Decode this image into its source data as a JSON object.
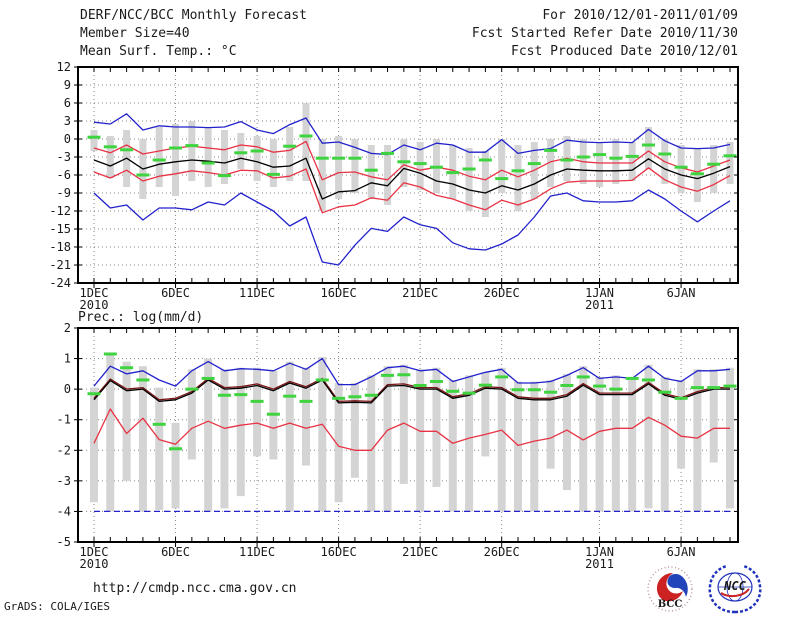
{
  "header": {
    "title": "DERF/NCC/BCC Monthly Forecast",
    "member_size": "Member Size=40",
    "for_range": "For 2010/12/01-2011/01/09",
    "refer_date": "Fcst Started Refer Date 2010/11/30",
    "produced_date": "Fcst Produced Date 2010/12/01"
  },
  "footer": {
    "url": "http://cmdp.ncc.cma.gov.cn",
    "grads_credit": "GrADS: COLA/IGES",
    "logos": [
      "BCC Beijing Climate Center",
      "NCC National Climate Center"
    ]
  },
  "colors": {
    "max_min_line": "#2222cc",
    "spread_line": "#e83344",
    "mean_line": "#000000",
    "median_line": "#7a1515",
    "observation": "#3fd43f",
    "spread_bar": "#d4d4d4",
    "grid": "#858585",
    "frame": "#000000",
    "text": "#1a1a1a",
    "logo_blue": "#2233bb",
    "logo_red": "#cc2222"
  },
  "chart_data": [
    {
      "type": "line",
      "title": "Mean Surf. Temp.: °C",
      "date_range": "2010/12/01 - 2011/01/09",
      "n_days": 40,
      "ylim": [
        -24,
        12
      ],
      "ytick_step": 3,
      "grid": "dotted",
      "legend": "none",
      "x_ticks": [
        {
          "day": 1,
          "label": "1DEC",
          "sublabel": "2010"
        },
        {
          "day": 6,
          "label": "6DEC"
        },
        {
          "day": 11,
          "label": "11DEC"
        },
        {
          "day": 16,
          "label": "16DEC"
        },
        {
          "day": 21,
          "label": "21DEC"
        },
        {
          "day": 26,
          "label": "26DEC"
        },
        {
          "day": 32,
          "label": "1JAN",
          "sublabel": "2011"
        },
        {
          "day": 37,
          "label": "6JAN"
        }
      ],
      "series": [
        {
          "name": "member-spread-bar",
          "kind": "range-bar",
          "color": "#d4d4d4",
          "top": [
            1.5,
            0.5,
            1.5,
            0.0,
            2.0,
            2.5,
            3.0,
            2.0,
            1.5,
            1.0,
            0.5,
            0.0,
            2.0,
            6.0,
            0.0,
            0.5,
            0.0,
            -1.0,
            -1.0,
            0.0,
            -0.5,
            0.0,
            -1.0,
            -1.5,
            -2.0,
            0.0,
            -1.0,
            -0.5,
            0.0,
            0.5,
            0.0,
            -0.5,
            0.0,
            -0.5,
            2.0,
            0.0,
            -1.0,
            -1.5,
            -1.0,
            -0.5
          ],
          "bottom": [
            -2.0,
            -6.5,
            -8.0,
            -10.0,
            -8.0,
            -9.5,
            -7.0,
            -8.0,
            -7.5,
            -5.0,
            -7.0,
            -8.0,
            -7.0,
            -7.0,
            -12.0,
            -10.0,
            -9.0,
            -10.0,
            -11.0,
            -8.0,
            -8.5,
            -9.0,
            -10.0,
            -12.0,
            -13.0,
            -9.0,
            -12.0,
            -10.0,
            -8.0,
            -7.0,
            -7.5,
            -8.0,
            -7.5,
            -7.0,
            -5.0,
            -7.5,
            -9.0,
            -10.5,
            -9.0,
            -7.5
          ]
        },
        {
          "name": "ensemble-max",
          "kind": "line",
          "color": "#2222cc",
          "values": [
            2.8,
            2.5,
            4.2,
            1.5,
            2.2,
            2.0,
            2.0,
            1.9,
            2.0,
            2.9,
            1.5,
            0.9,
            2.4,
            3.5,
            -0.7,
            -0.5,
            -1.4,
            -2.4,
            -2.6,
            -1.0,
            -1.8,
            -0.7,
            -1.0,
            -2.2,
            -2.2,
            -0.1,
            -2.4,
            -1.9,
            -1.6,
            -0.2,
            -0.5,
            -0.6,
            -0.5,
            -0.6,
            1.6,
            -0.3,
            -1.5,
            -1.6,
            -1.5,
            -0.9
          ]
        },
        {
          "name": "upper-spread",
          "kind": "line",
          "color": "#e83344",
          "values": [
            -1.5,
            -2.3,
            -1.0,
            -2.5,
            -2.0,
            -1.5,
            -1.2,
            -1.5,
            -1.8,
            -1.0,
            -1.3,
            -2.2,
            -1.9,
            -0.4,
            -6.8,
            -5.6,
            -5.5,
            -6.3,
            -6.8,
            -4.3,
            -5.2,
            -4.7,
            -5.2,
            -6.2,
            -6.8,
            -5.2,
            -6.3,
            -5.2,
            -3.8,
            -3.2,
            -3.8,
            -4.0,
            -4.0,
            -4.0,
            -2.0,
            -3.8,
            -4.8,
            -5.5,
            -4.5,
            -3.5
          ]
        },
        {
          "name": "ensemble-mean",
          "kind": "line",
          "color": "#000000",
          "values": [
            -3.5,
            -4.5,
            -3.2,
            -5.0,
            -4.2,
            -3.8,
            -3.5,
            -3.7,
            -4.0,
            -3.2,
            -3.8,
            -4.7,
            -4.5,
            -3.2,
            -10.0,
            -8.8,
            -8.6,
            -7.3,
            -7.8,
            -4.9,
            -5.7,
            -7.0,
            -7.5,
            -8.5,
            -9.0,
            -7.8,
            -8.5,
            -7.5,
            -6.0,
            -5.0,
            -5.2,
            -5.3,
            -5.3,
            -5.2,
            -3.3,
            -5.0,
            -6.0,
            -6.6,
            -5.7,
            -4.6
          ]
        },
        {
          "name": "lower-spread",
          "kind": "line",
          "color": "#e83344",
          "values": [
            -5.5,
            -6.5,
            -5.2,
            -7.0,
            -6.2,
            -5.8,
            -5.3,
            -5.6,
            -6.0,
            -5.2,
            -5.3,
            -6.5,
            -6.2,
            -5.0,
            -12.3,
            -11.3,
            -11.0,
            -9.8,
            -10.2,
            -7.3,
            -8.0,
            -9.4,
            -10.0,
            -11.0,
            -11.8,
            -10.2,
            -11.0,
            -10.0,
            -8.3,
            -7.2,
            -7.0,
            -7.0,
            -7.0,
            -6.9,
            -4.8,
            -6.8,
            -8.0,
            -8.7,
            -7.6,
            -6.1
          ]
        },
        {
          "name": "ensemble-min",
          "kind": "line",
          "color": "#2222cc",
          "values": [
            -9.0,
            -11.5,
            -11.0,
            -13.5,
            -11.5,
            -11.5,
            -11.8,
            -10.5,
            -11.0,
            -9.0,
            -10.5,
            -12.0,
            -14.5,
            -13.0,
            -20.5,
            -21.0,
            -17.7,
            -14.9,
            -15.4,
            -13.0,
            -14.3,
            -14.9,
            -17.3,
            -18.3,
            -18.5,
            -17.5,
            -16.0,
            -13.0,
            -9.5,
            -9.0,
            -10.3,
            -10.5,
            -10.5,
            -10.3,
            -8.5,
            -10.0,
            -12.0,
            -13.8,
            -12.0,
            -10.3
          ]
        },
        {
          "name": "observation",
          "kind": "dash-marker",
          "color": "#3fd43f",
          "values": [
            0.3,
            -1.3,
            -1.8,
            -6.0,
            -3.5,
            -1.5,
            -1.1,
            -4.0,
            -6.1,
            -2.3,
            -2.0,
            -5.9,
            -1.2,
            0.5,
            -3.2,
            -3.2,
            -3.2,
            -5.2,
            -2.4,
            -3.8,
            -4.1,
            -4.7,
            -5.6,
            -5.0,
            -3.5,
            -6.6,
            -5.3,
            -4.1,
            -1.9,
            -3.5,
            -3.0,
            -2.6,
            -3.2,
            -2.9,
            -1.0,
            -2.5,
            -4.7,
            -5.8,
            -4.2,
            -2.8
          ]
        }
      ]
    },
    {
      "type": "line",
      "title": "Prec.: log(mm/d)",
      "date_range": "2010/12/01 - 2011/01/09",
      "n_days": 40,
      "ylim": [
        -5,
        2
      ],
      "ytick_step": 1,
      "grid": "dotted",
      "legend": "none",
      "x_ticks": [
        {
          "day": 1,
          "label": "1DEC",
          "sublabel": "2010"
        },
        {
          "day": 6,
          "label": "6DEC"
        },
        {
          "day": 11,
          "label": "11DEC"
        },
        {
          "day": 16,
          "label": "16DEC"
        },
        {
          "day": 21,
          "label": "21DEC"
        },
        {
          "day": 26,
          "label": "26DEC"
        },
        {
          "day": 32,
          "label": "1JAN",
          "sublabel": "2011"
        },
        {
          "day": 37,
          "label": "6JAN"
        }
      ],
      "series": [
        {
          "name": "member-spread-bar",
          "kind": "range-bar",
          "color": "#d4d4d4",
          "top": [
            0.05,
            1.2,
            0.9,
            0.75,
            0.05,
            -1.1,
            0.65,
            1.0,
            0.65,
            0.7,
            0.7,
            0.6,
            0.9,
            0.7,
            1.05,
            0.2,
            0.2,
            0.45,
            0.75,
            0.8,
            0.65,
            0.7,
            0.3,
            0.45,
            0.55,
            0.7,
            0.25,
            0.25,
            0.3,
            0.5,
            0.75,
            0.4,
            0.45,
            0.4,
            0.8,
            0.4,
            0.3,
            0.65,
            0.65,
            0.7
          ],
          "bottom": [
            -3.7,
            -4.0,
            -3.0,
            -4.0,
            -3.95,
            -3.9,
            -2.3,
            -4.0,
            -3.9,
            -3.5,
            -2.2,
            -2.3,
            -4.0,
            -2.5,
            -4.0,
            -3.7,
            -2.9,
            -4.0,
            -4.0,
            -3.1,
            -4.0,
            -3.2,
            -4.0,
            -4.0,
            -2.2,
            -4.0,
            -4.0,
            -4.0,
            -2.6,
            -3.3,
            -4.0,
            -4.0,
            -4.0,
            -4.0,
            -3.9,
            -4.0,
            -2.6,
            -4.0,
            -2.4,
            -3.9
          ]
        },
        {
          "name": "ensemble-max",
          "kind": "line",
          "color": "#2222cc",
          "values": [
            0.1,
            0.75,
            0.5,
            0.6,
            0.3,
            0.1,
            0.6,
            0.9,
            0.6,
            0.67,
            0.65,
            0.6,
            0.85,
            0.65,
            1.0,
            0.15,
            0.15,
            0.4,
            0.7,
            0.75,
            0.6,
            0.65,
            0.25,
            0.4,
            0.55,
            0.65,
            0.2,
            0.2,
            0.25,
            0.45,
            0.7,
            0.35,
            0.4,
            0.35,
            0.75,
            0.35,
            0.25,
            0.6,
            0.6,
            0.65
          ]
        },
        {
          "name": "median",
          "kind": "line",
          "color": "#7a1515",
          "values": [
            -0.3,
            0.33,
            0.0,
            0.05,
            -0.35,
            -0.3,
            -0.08,
            0.35,
            0.05,
            0.08,
            0.17,
            0.0,
            0.25,
            0.08,
            0.35,
            -0.4,
            -0.38,
            -0.4,
            0.15,
            0.17,
            0.05,
            0.05,
            -0.25,
            -0.15,
            0.08,
            0.05,
            -0.25,
            -0.3,
            -0.3,
            -0.18,
            0.18,
            -0.13,
            -0.13,
            -0.13,
            0.22,
            -0.15,
            -0.28,
            -0.08,
            0.05,
            0.05
          ]
        },
        {
          "name": "ensemble-mean",
          "kind": "line",
          "color": "#000000",
          "values": [
            -0.35,
            0.28,
            -0.05,
            0.0,
            -0.4,
            -0.35,
            -0.13,
            0.3,
            0.0,
            0.03,
            0.12,
            -0.05,
            0.2,
            0.03,
            0.3,
            -0.45,
            -0.43,
            -0.45,
            0.1,
            0.12,
            0.0,
            0.0,
            -0.3,
            -0.2,
            0.03,
            0.0,
            -0.3,
            -0.35,
            -0.35,
            -0.23,
            0.13,
            -0.18,
            -0.18,
            -0.18,
            0.17,
            -0.2,
            -0.33,
            -0.13,
            0.0,
            0.0
          ]
        },
        {
          "name": "lower-spread",
          "kind": "line",
          "color": "#e83344",
          "values": [
            -1.77,
            -0.65,
            -1.45,
            -0.95,
            -1.65,
            -1.8,
            -1.28,
            -1.05,
            -1.28,
            -1.18,
            -1.11,
            -1.28,
            -1.11,
            -1.28,
            -1.15,
            -1.87,
            -2.0,
            -2.0,
            -1.34,
            -1.11,
            -1.38,
            -1.38,
            -1.77,
            -1.6,
            -1.48,
            -1.34,
            -1.84,
            -1.7,
            -1.6,
            -1.34,
            -1.66,
            -1.38,
            -1.28,
            -1.28,
            -0.92,
            -1.18,
            -1.54,
            -1.6,
            -1.28,
            -1.28
          ]
        },
        {
          "name": "ensemble-min",
          "kind": "line",
          "color": "#2222cc",
          "dash": true,
          "values": [
            -4.0,
            -4.0,
            -4.0,
            -4.0,
            -4.0,
            -4.0,
            -4.0,
            -4.0,
            -4.0,
            -4.0,
            -4.0,
            -4.0,
            -4.0,
            -4.0,
            -4.0,
            -4.0,
            -4.0,
            -4.0,
            -4.0,
            -4.0,
            -4.0,
            -4.0,
            -4.0,
            -4.0,
            -4.0,
            -4.0,
            -4.0,
            -4.0,
            -4.0,
            -4.0,
            -4.0,
            -4.0,
            -4.0,
            -4.0,
            -4.0,
            -4.0,
            -4.0,
            -4.0,
            -4.0,
            -4.0
          ]
        },
        {
          "name": "observation",
          "kind": "dash-marker",
          "color": "#3fd43f",
          "values": [
            -0.15,
            1.15,
            0.7,
            0.3,
            -1.15,
            -1.95,
            0.0,
            0.35,
            -0.2,
            -0.18,
            -0.4,
            -0.82,
            -0.23,
            -0.4,
            0.3,
            -0.3,
            -0.25,
            -0.2,
            0.45,
            0.47,
            0.12,
            0.25,
            -0.07,
            -0.13,
            0.13,
            0.4,
            -0.02,
            -0.02,
            -0.1,
            0.12,
            0.4,
            0.1,
            0.0,
            0.35,
            0.3,
            -0.1,
            -0.3,
            0.05,
            0.05,
            0.1
          ]
        }
      ]
    }
  ]
}
